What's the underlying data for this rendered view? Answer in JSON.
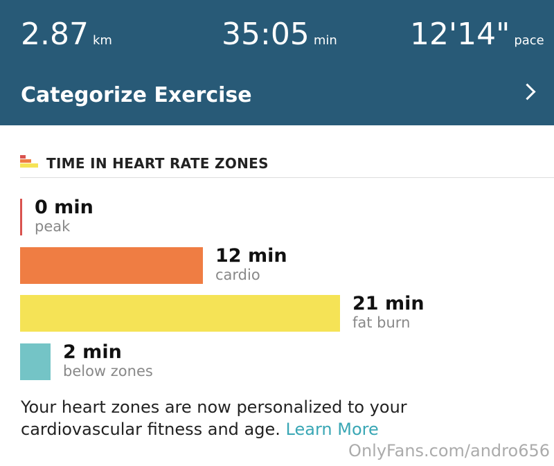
{
  "header": {
    "stats": [
      {
        "value": "2.87",
        "unit": "km"
      },
      {
        "value": "35:05",
        "unit": "min"
      },
      {
        "value": "12'14\"",
        "unit": "pace"
      }
    ],
    "action": "Categorize Exercise"
  },
  "chart_data": {
    "type": "bar",
    "orientation": "horizontal",
    "title": "TIME IN HEART RATE ZONES",
    "categories": [
      "peak",
      "cardio",
      "fat burn",
      "below zones"
    ],
    "values": [
      0,
      12,
      21,
      2
    ],
    "value_labels": [
      "0 min",
      "12 min",
      "21 min",
      "2 min"
    ],
    "colors": [
      "#d9534f",
      "#ef7d43",
      "#f5e356",
      "#74c4c6"
    ]
  },
  "footer": {
    "lines": [
      "Your heart zones are now personalized to your",
      "cardiovascular fitness and age."
    ],
    "link": "Learn More"
  },
  "watermark": "OnlyFans.com/andro656"
}
